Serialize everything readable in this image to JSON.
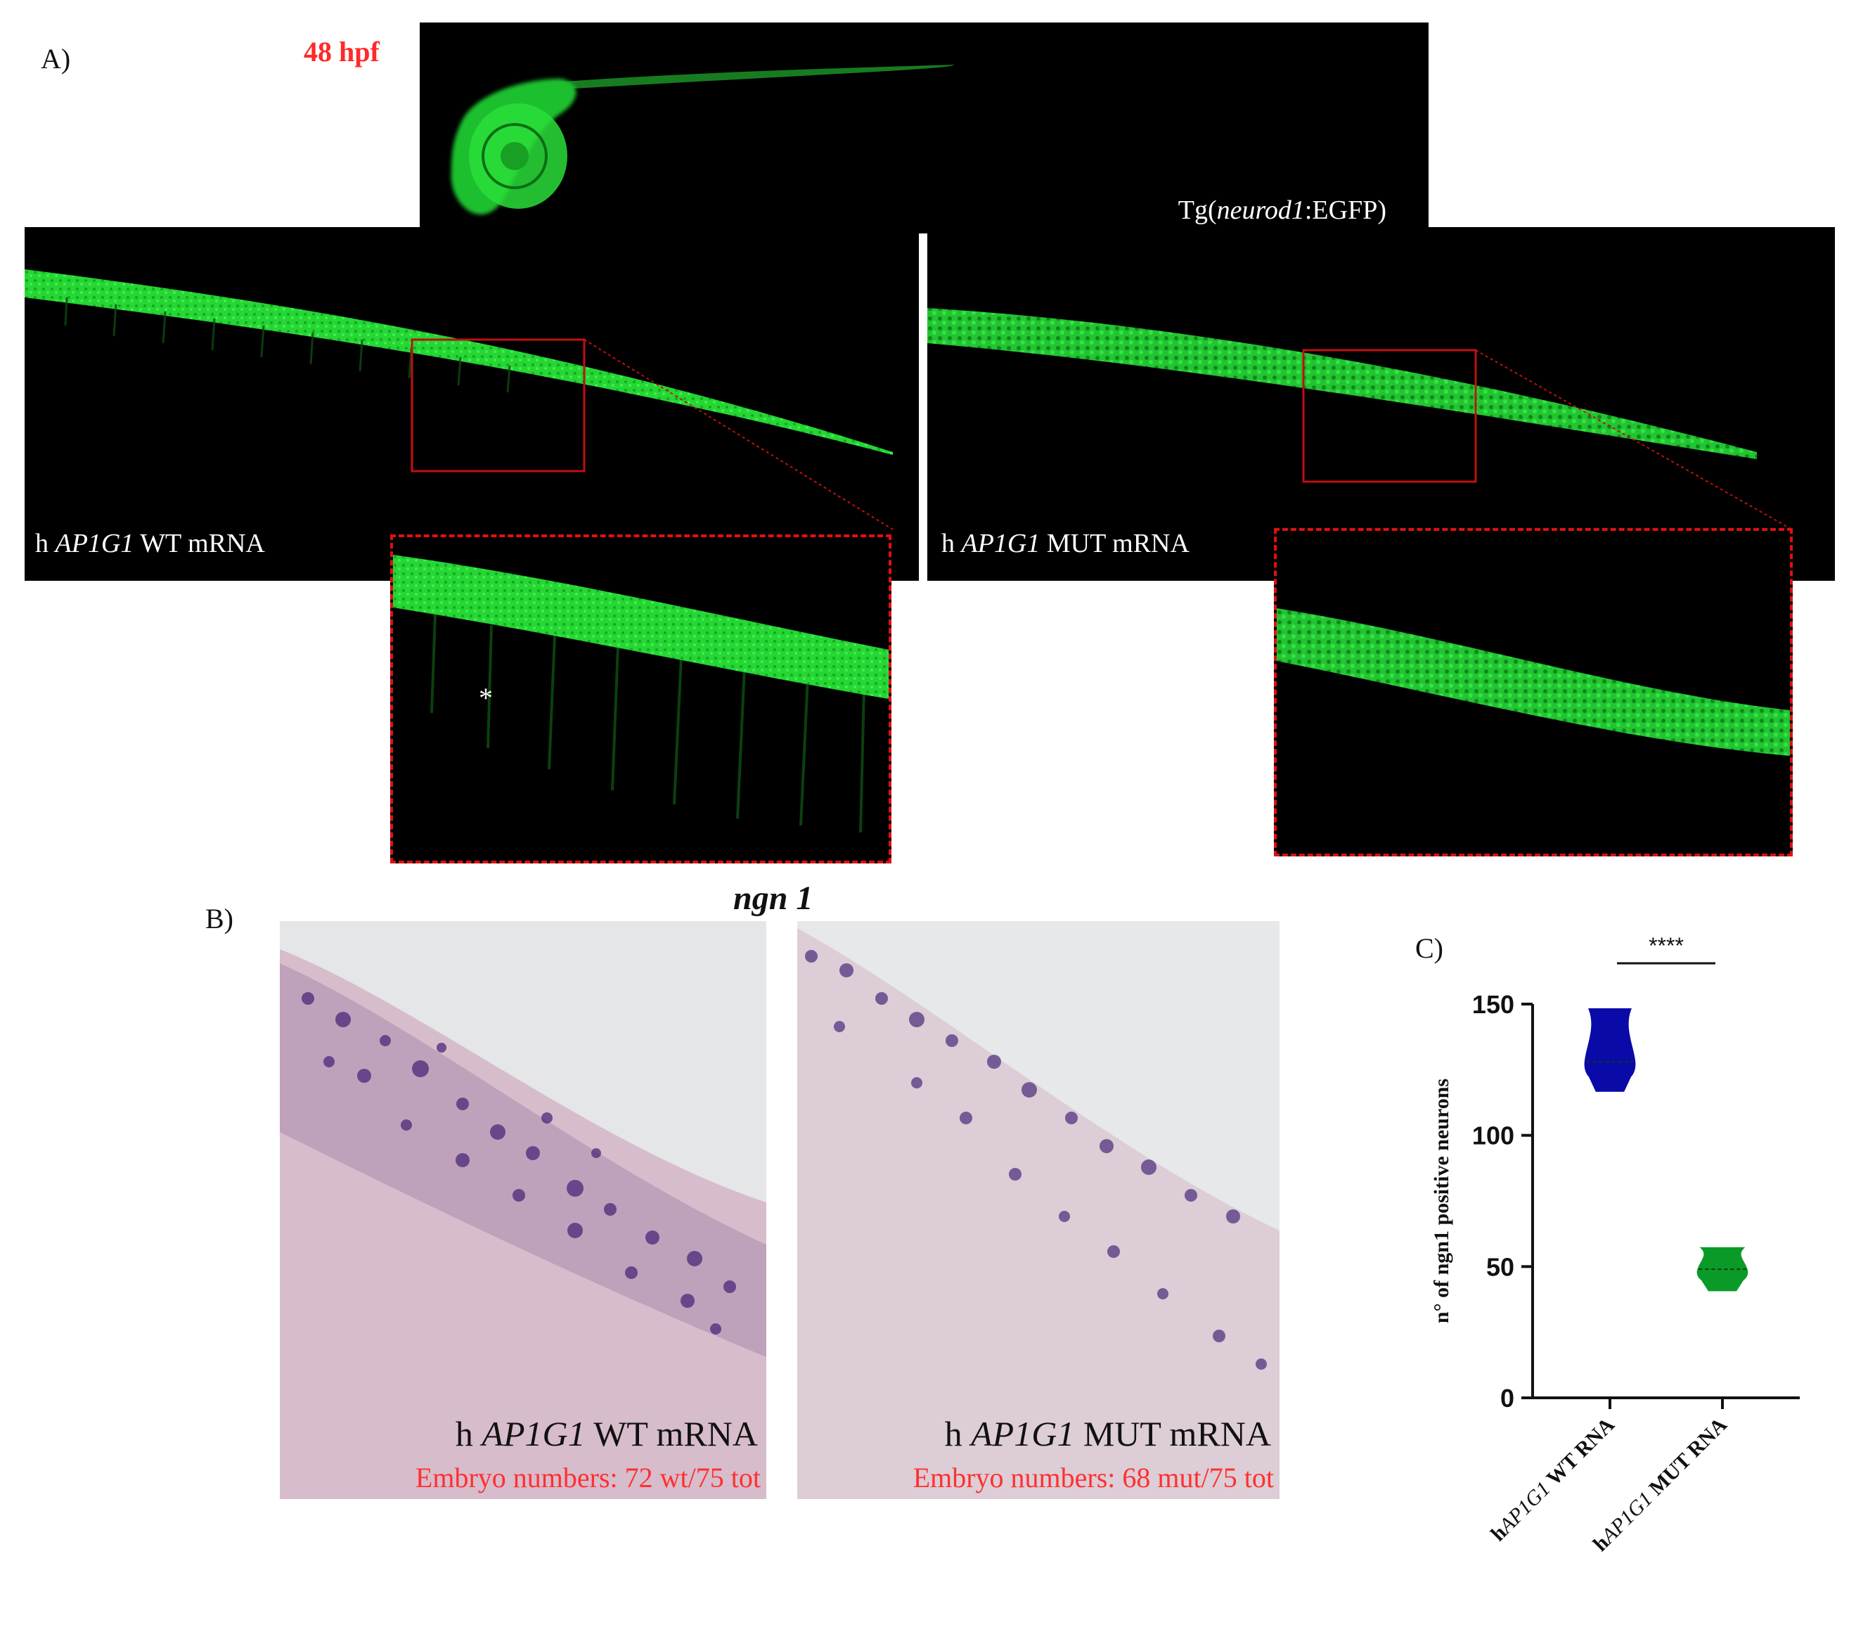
{
  "panel_a": {
    "letter": "A)",
    "time_label": "48 hpf",
    "transgene_prefix": "Tg(",
    "transgene_gene": "neurod1",
    "transgene_suffix": ":EGFP)",
    "wt_prefix": "h ",
    "wt_gene": "AP1G1",
    "wt_suffix": " WT mRNA",
    "mut_prefix": "h ",
    "mut_gene": "AP1G1",
    "mut_suffix": " MUT mRNA",
    "asterisk": "*",
    "colors": {
      "egfp": "#22dd33",
      "zoom_box": "#e01010"
    }
  },
  "panel_b": {
    "letter": "B)",
    "title": "ngn 1",
    "wt_prefix": "h ",
    "wt_gene": "AP1G1",
    "wt_suffix": " WT mRNA",
    "wt_count": "Embryo numbers: 72 wt/75 tot",
    "mut_prefix": "h ",
    "mut_gene": "AP1G1",
    "mut_suffix": " MUT mRNA",
    "mut_count": "Embryo numbers: 68 mut/75 tot"
  },
  "panel_c": {
    "letter": "C)",
    "significance": "****"
  },
  "chart_data": {
    "type": "violin",
    "ylabel": "n° of ngn1 positive neurons",
    "ylim": [
      0,
      150
    ],
    "yticks": [
      0,
      50,
      100,
      150
    ],
    "categories": [
      {
        "prefix": "h",
        "gene": "AP1G1",
        "suffix": " WT RNA"
      },
      {
        "prefix": "h",
        "gene": "AP1G1",
        "suffix": " MUT RNA"
      }
    ],
    "series": [
      {
        "category_index": 0,
        "min": 117,
        "max": 148,
        "median": 128,
        "color": "#0a0aa8"
      },
      {
        "category_index": 1,
        "min": 41,
        "max": 57,
        "median": 49,
        "color": "#0a9a28"
      }
    ],
    "significance": "****"
  }
}
